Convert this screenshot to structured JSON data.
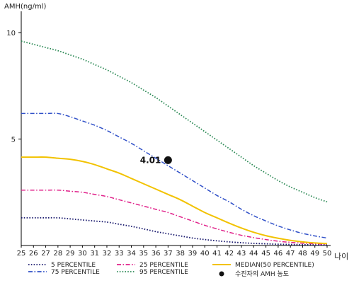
{
  "chart_data": {
    "type": "line",
    "ylabel": "AMH(ng/ml)",
    "xlabel": "나이",
    "x": [
      25,
      26,
      27,
      28,
      29,
      30,
      31,
      32,
      33,
      34,
      35,
      36,
      37,
      38,
      39,
      40,
      41,
      42,
      43,
      44,
      45,
      46,
      47,
      48,
      49,
      50
    ],
    "xlim": [
      25,
      50
    ],
    "ylim": [
      0,
      11
    ],
    "yticks": [
      5,
      10
    ],
    "series": [
      {
        "name": "5 PERCENTILE",
        "color": "#1a1a6e",
        "dash": "dotted",
        "values": [
          1.3,
          1.3,
          1.3,
          1.3,
          1.25,
          1.2,
          1.15,
          1.1,
          1.0,
          0.9,
          0.78,
          0.65,
          0.55,
          0.45,
          0.35,
          0.28,
          0.22,
          0.17,
          0.13,
          0.1,
          0.08,
          0.06,
          0.05,
          0.04,
          0.03,
          0.03
        ]
      },
      {
        "name": "25 PERCENTILE",
        "color": "#e0218a",
        "dash": "dashdot",
        "values": [
          2.6,
          2.6,
          2.6,
          2.6,
          2.55,
          2.5,
          2.4,
          2.3,
          2.15,
          2.0,
          1.85,
          1.7,
          1.55,
          1.35,
          1.15,
          0.95,
          0.78,
          0.62,
          0.48,
          0.37,
          0.28,
          0.2,
          0.15,
          0.11,
          0.08,
          0.06
        ]
      },
      {
        "name": "MEDIAN(50 PERCENTILE)",
        "color": "#f2c200",
        "dash": "solid",
        "values": [
          4.15,
          4.15,
          4.15,
          4.1,
          4.05,
          3.95,
          3.8,
          3.6,
          3.4,
          3.15,
          2.9,
          2.65,
          2.4,
          2.15,
          1.85,
          1.55,
          1.3,
          1.05,
          0.82,
          0.62,
          0.46,
          0.34,
          0.24,
          0.17,
          0.12,
          0.09
        ]
      },
      {
        "name": "75 PERCENTILE",
        "color": "#3050c8",
        "dash": "dashdot",
        "values": [
          6.2,
          6.2,
          6.2,
          6.2,
          6.05,
          5.85,
          5.65,
          5.4,
          5.1,
          4.8,
          4.45,
          4.1,
          3.75,
          3.4,
          3.05,
          2.7,
          2.35,
          2.05,
          1.7,
          1.4,
          1.15,
          0.92,
          0.73,
          0.57,
          0.45,
          0.35
        ]
      },
      {
        "name": "95 PERCENTILE",
        "color": "#2e8b57",
        "dash": "dotted",
        "values": [
          9.6,
          9.45,
          9.3,
          9.15,
          8.95,
          8.75,
          8.5,
          8.25,
          7.95,
          7.65,
          7.3,
          6.95,
          6.55,
          6.15,
          5.75,
          5.35,
          4.95,
          4.55,
          4.15,
          3.75,
          3.4,
          3.05,
          2.75,
          2.5,
          2.25,
          2.05
        ]
      }
    ],
    "highlight": {
      "name": "수진자의 AMH 농도",
      "x": 37,
      "y": 4.01,
      "label": "4.01",
      "color": "#111111"
    },
    "legend_position": "bottom"
  }
}
